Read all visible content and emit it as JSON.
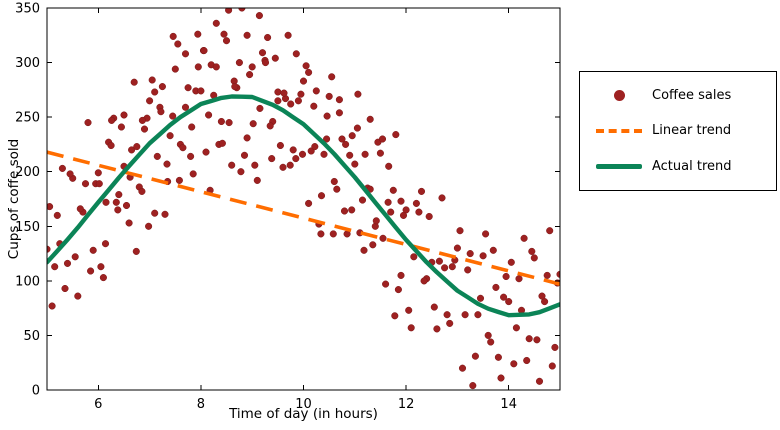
{
  "chart_data": {
    "type": "scatter",
    "title": "",
    "xlabel": "Time of day (in hours)",
    "ylabel": "Cups of coffe sold",
    "xlim": [
      5,
      15
    ],
    "ylim": [
      0,
      350
    ],
    "xticks": [
      6,
      8,
      10,
      12,
      14
    ],
    "yticks": [
      0,
      50,
      100,
      150,
      200,
      250,
      300,
      350
    ],
    "grid": false,
    "legend": {
      "position": "outside-right",
      "entries": [
        {
          "label": "Coffee sales",
          "marker": "dot",
          "color": "#9e2121"
        },
        {
          "label": "Linear trend",
          "marker": "dashed-line",
          "color": "#ff6d00"
        },
        {
          "label": "Actual trend",
          "marker": "solid-line",
          "color": "#0b8457"
        }
      ]
    },
    "series": [
      {
        "name": "Coffee sales",
        "type": "scatter",
        "color": "#9e2121",
        "points": [
          [
            5.0,
            129
          ],
          [
            5.1,
            77
          ],
          [
            5.2,
            160
          ],
          [
            5.3,
            203
          ],
          [
            5.4,
            116
          ],
          [
            5.5,
            194
          ],
          [
            5.6,
            86
          ],
          [
            5.7,
            163
          ],
          [
            5.8,
            245
          ],
          [
            5.9,
            128
          ],
          [
            6.0,
            199
          ],
          [
            6.1,
            103
          ],
          [
            6.2,
            227
          ],
          [
            6.3,
            249
          ],
          [
            6.4,
            179
          ],
          [
            6.5,
            205
          ],
          [
            6.6,
            153
          ],
          [
            6.7,
            282
          ],
          [
            6.8,
            186
          ],
          [
            6.9,
            239
          ],
          [
            7.0,
            265
          ],
          [
            7.1,
            162
          ],
          [
            7.2,
            259
          ],
          [
            7.3,
            161
          ],
          [
            7.4,
            233
          ],
          [
            7.5,
            294
          ],
          [
            7.6,
            225
          ],
          [
            7.7,
            308
          ],
          [
            7.8,
            214
          ],
          [
            7.9,
            274
          ],
          [
            8.0,
            274
          ],
          [
            8.1,
            218
          ],
          [
            8.2,
            298
          ],
          [
            8.3,
            336
          ],
          [
            8.4,
            246
          ],
          [
            8.5,
            320
          ],
          [
            8.6,
            206
          ],
          [
            8.7,
            277
          ],
          [
            8.8,
            350
          ],
          [
            8.9,
            231
          ],
          [
            9.0,
            296
          ],
          [
            9.1,
            192
          ],
          [
            9.2,
            309
          ],
          [
            9.3,
            323
          ],
          [
            9.4,
            246
          ],
          [
            9.5,
            265
          ],
          [
            9.6,
            204
          ],
          [
            9.7,
            325
          ],
          [
            9.8,
            220
          ],
          [
            9.9,
            265
          ],
          [
            10.0,
            283
          ],
          [
            10.1,
            171
          ],
          [
            10.2,
            260
          ],
          [
            10.3,
            152
          ],
          [
            10.4,
            216
          ],
          [
            10.5,
            269
          ],
          [
            10.6,
            191
          ],
          [
            10.7,
            266
          ],
          [
            10.8,
            164
          ],
          [
            10.9,
            215
          ],
          [
            11.0,
            207
          ],
          [
            11.1,
            144
          ],
          [
            11.2,
            216
          ],
          [
            11.3,
            248
          ],
          [
            11.4,
            150
          ],
          [
            11.5,
            217
          ],
          [
            11.6,
            97
          ],
          [
            11.7,
            163
          ],
          [
            11.8,
            234
          ],
          [
            11.9,
            105
          ],
          [
            12.0,
            165
          ],
          [
            12.1,
            57
          ],
          [
            12.2,
            171
          ],
          [
            12.3,
            182
          ],
          [
            12.4,
            102
          ],
          [
            12.5,
            117
          ],
          [
            12.6,
            56
          ],
          [
            12.7,
            176
          ],
          [
            12.8,
            69
          ],
          [
            12.9,
            113
          ],
          [
            13.0,
            130
          ],
          [
            13.1,
            20
          ],
          [
            13.2,
            110
          ],
          [
            13.3,
            4
          ],
          [
            13.4,
            69
          ],
          [
            13.5,
            123
          ],
          [
            13.6,
            50
          ],
          [
            13.7,
            128
          ],
          [
            13.8,
            30
          ],
          [
            13.9,
            85
          ],
          [
            14.0,
            81
          ],
          [
            14.1,
            24
          ],
          [
            14.2,
            102
          ],
          [
            14.3,
            139
          ],
          [
            14.4,
            47
          ],
          [
            14.5,
            121
          ],
          [
            14.6,
            8
          ],
          [
            14.7,
            81
          ],
          [
            14.8,
            146
          ],
          [
            14.9,
            39
          ],
          [
            15.0,
            106
          ],
          [
            5.05,
            168
          ],
          [
            5.15,
            113
          ],
          [
            5.25,
            134
          ],
          [
            5.35,
            93
          ],
          [
            5.45,
            198
          ],
          [
            5.55,
            122
          ],
          [
            5.65,
            166
          ],
          [
            5.75,
            189
          ],
          [
            5.85,
            109
          ],
          [
            5.95,
            189
          ],
          [
            6.05,
            113
          ],
          [
            6.15,
            172
          ],
          [
            6.25,
            224
          ],
          [
            6.35,
            172
          ],
          [
            6.45,
            241
          ],
          [
            6.55,
            169
          ],
          [
            6.65,
            220
          ],
          [
            6.75,
            223
          ],
          [
            6.85,
            182
          ],
          [
            6.95,
            249
          ],
          [
            7.05,
            284
          ],
          [
            7.15,
            214
          ],
          [
            7.25,
            278
          ],
          [
            7.35,
            191
          ],
          [
            7.45,
            251
          ],
          [
            7.55,
            317
          ],
          [
            7.65,
            222
          ],
          [
            7.75,
            277
          ],
          [
            7.85,
            198
          ],
          [
            7.95,
            296
          ],
          [
            8.05,
            311
          ],
          [
            8.15,
            252
          ],
          [
            8.25,
            270
          ],
          [
            8.35,
            225
          ],
          [
            8.45,
            326
          ],
          [
            8.55,
            245
          ],
          [
            8.65,
            283
          ],
          [
            8.75,
            300
          ],
          [
            8.85,
            215
          ],
          [
            8.95,
            289
          ],
          [
            9.05,
            206
          ],
          [
            9.15,
            258
          ],
          [
            9.25,
            302
          ],
          [
            9.35,
            242
          ],
          [
            9.45,
            304
          ],
          [
            9.55,
            224
          ],
          [
            9.65,
            267
          ],
          [
            9.75,
            262
          ],
          [
            9.85,
            212
          ],
          [
            9.95,
            271
          ],
          [
            10.05,
            297
          ],
          [
            10.15,
            219
          ],
          [
            10.25,
            274
          ],
          [
            10.35,
            178
          ],
          [
            10.45,
            230
          ],
          [
            10.55,
            287
          ],
          [
            10.65,
            184
          ],
          [
            10.75,
            230
          ],
          [
            10.85,
            143
          ],
          [
            10.95,
            233
          ],
          [
            11.05,
            240
          ],
          [
            11.15,
            174
          ],
          [
            11.25,
            185
          ],
          [
            11.35,
            133
          ],
          [
            11.45,
            227
          ],
          [
            11.55,
            139
          ],
          [
            11.65,
            172
          ],
          [
            11.75,
            183
          ],
          [
            11.85,
            92
          ],
          [
            11.95,
            160
          ],
          [
            12.05,
            73
          ],
          [
            12.15,
            122
          ],
          [
            12.25,
            163
          ],
          [
            12.35,
            100
          ],
          [
            12.45,
            159
          ],
          [
            12.55,
            76
          ],
          [
            12.65,
            118
          ],
          [
            12.75,
            112
          ],
          [
            12.85,
            61
          ],
          [
            12.95,
            119
          ],
          [
            13.05,
            146
          ],
          [
            13.15,
            69
          ],
          [
            13.25,
            125
          ],
          [
            13.35,
            31
          ],
          [
            13.45,
            84
          ],
          [
            13.55,
            143
          ],
          [
            13.65,
            44
          ],
          [
            13.75,
            94
          ],
          [
            13.85,
            11
          ],
          [
            13.95,
            104
          ],
          [
            14.05,
            117
          ],
          [
            14.15,
            57
          ],
          [
            14.25,
            73
          ],
          [
            14.35,
            27
          ],
          [
            14.45,
            127
          ],
          [
            14.55,
            46
          ],
          [
            14.65,
            86
          ],
          [
            14.75,
            105
          ],
          [
            14.85,
            22
          ],
          [
            14.95,
            98
          ],
          [
            6.02,
            189
          ],
          [
            6.14,
            134
          ],
          [
            6.26,
            247
          ],
          [
            6.38,
            165
          ],
          [
            6.5,
            252
          ],
          [
            6.62,
            195
          ],
          [
            6.74,
            127
          ],
          [
            6.86,
            247
          ],
          [
            6.98,
            150
          ],
          [
            7.1,
            273
          ],
          [
            7.22,
            255
          ],
          [
            7.34,
            207
          ],
          [
            7.46,
            324
          ],
          [
            7.58,
            192
          ],
          [
            7.7,
            259
          ],
          [
            7.82,
            241
          ],
          [
            7.94,
            326
          ],
          [
            8.06,
            311
          ],
          [
            8.18,
            183
          ],
          [
            8.3,
            296
          ],
          [
            8.42,
            226
          ],
          [
            8.54,
            348
          ],
          [
            8.66,
            278
          ],
          [
            8.78,
            200
          ],
          [
            8.9,
            325
          ],
          [
            9.02,
            244
          ],
          [
            9.14,
            343
          ],
          [
            9.26,
            300
          ],
          [
            9.38,
            212
          ],
          [
            9.5,
            273
          ],
          [
            9.62,
            272
          ],
          [
            9.74,
            206
          ],
          [
            9.86,
            308
          ],
          [
            9.98,
            216
          ],
          [
            10.1,
            291
          ],
          [
            10.22,
            223
          ],
          [
            10.34,
            143
          ],
          [
            10.46,
            251
          ],
          [
            10.58,
            143
          ],
          [
            10.7,
            254
          ],
          [
            10.82,
            225
          ],
          [
            10.94,
            165
          ],
          [
            11.06,
            271
          ],
          [
            11.18,
            128
          ],
          [
            11.3,
            184
          ],
          [
            11.42,
            155
          ],
          [
            11.54,
            230
          ],
          [
            11.66,
            205
          ],
          [
            11.78,
            68
          ],
          [
            11.9,
            173
          ]
        ]
      },
      {
        "name": "Linear trend",
        "type": "line",
        "style": "dashed",
        "color": "#ff6d00",
        "points": [
          [
            5,
            218
          ],
          [
            15,
            97
          ]
        ]
      },
      {
        "name": "Actual trend",
        "type": "line",
        "style": "solid",
        "color": "#0b8457",
        "points": [
          [
            5,
            117
          ],
          [
            5.2,
            127.4
          ],
          [
            5.4,
            137.8
          ],
          [
            5.6,
            148.8
          ],
          [
            5.8,
            160.4
          ],
          [
            6,
            172
          ],
          [
            6.2,
            183.2
          ],
          [
            6.4,
            194.4
          ],
          [
            6.6,
            205.2
          ],
          [
            6.8,
            215.6
          ],
          [
            7,
            226
          ],
          [
            7.2,
            234.4
          ],
          [
            7.4,
            242.8
          ],
          [
            7.6,
            250
          ],
          [
            7.8,
            256
          ],
          [
            8,
            262
          ],
          [
            8.2,
            264.8
          ],
          [
            8.4,
            267.6
          ],
          [
            8.6,
            268.9
          ],
          [
            8.8,
            268.7
          ],
          [
            9,
            268.5
          ],
          [
            9.2,
            264.9
          ],
          [
            9.4,
            261.3
          ],
          [
            9.6,
            256.3
          ],
          [
            9.8,
            249.9
          ],
          [
            10,
            243.5
          ],
          [
            10.2,
            234.7
          ],
          [
            10.4,
            225.9
          ],
          [
            10.6,
            216.2
          ],
          [
            10.8,
            205.6
          ],
          [
            11,
            195
          ],
          [
            11.2,
            183.4
          ],
          [
            11.4,
            171.8
          ],
          [
            11.6,
            160.3
          ],
          [
            11.8,
            148.9
          ],
          [
            12,
            137.5
          ],
          [
            12.2,
            127.3
          ],
          [
            12.4,
            117.1
          ],
          [
            12.6,
            107.8
          ],
          [
            12.8,
            99.4
          ],
          [
            13,
            91
          ],
          [
            13.2,
            85
          ],
          [
            13.4,
            79
          ],
          [
            13.6,
            74.5
          ],
          [
            13.8,
            71.5
          ],
          [
            14,
            68.5
          ],
          [
            14.2,
            68.9
          ],
          [
            14.4,
            69.3
          ],
          [
            14.6,
            71.3
          ],
          [
            14.8,
            74.9
          ],
          [
            15,
            78.5
          ]
        ]
      }
    ]
  }
}
